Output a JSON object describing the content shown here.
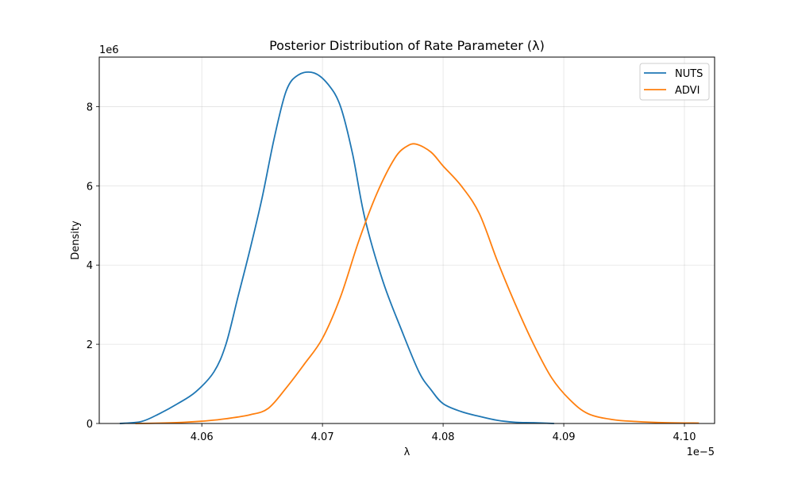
{
  "chart_data": {
    "type": "line",
    "title": "Posterior Distribution of Rate Parameter (λ)",
    "xlabel": "λ",
    "ylabel": "Density",
    "x_offset_label": "1e−5",
    "y_offset_label": "1e6",
    "x_ticks": [
      "4.06",
      "4.07",
      "4.08",
      "4.09",
      "4.10"
    ],
    "x_tick_values": [
      4.06,
      4.07,
      4.08,
      4.09,
      4.1
    ],
    "y_ticks": [
      "0",
      "2",
      "4",
      "6",
      "8"
    ],
    "y_tick_values": [
      0,
      2,
      4,
      6,
      8
    ],
    "xlim": [
      4.0515,
      4.1025
    ],
    "ylim": [
      0,
      9.25
    ],
    "grid": true,
    "legend_position": "top-right",
    "series": [
      {
        "name": "NUTS",
        "color": "#1f77b4",
        "x": [
          4.0532,
          4.055,
          4.0565,
          4.058,
          4.0595,
          4.061,
          4.062,
          4.063,
          4.064,
          4.065,
          4.066,
          4.067,
          4.068,
          4.0693,
          4.0705,
          4.0715,
          4.0725,
          4.0735,
          4.075,
          4.0765,
          4.078,
          4.079,
          4.08,
          4.0815,
          4.083,
          4.0845,
          4.086,
          4.0875,
          4.0892
        ],
        "y": [
          0.0,
          0.05,
          0.25,
          0.5,
          0.8,
          1.3,
          2.0,
          3.2,
          4.4,
          5.7,
          7.2,
          8.4,
          8.8,
          8.85,
          8.55,
          8.0,
          6.8,
          5.2,
          3.6,
          2.4,
          1.3,
          0.85,
          0.5,
          0.3,
          0.18,
          0.08,
          0.03,
          0.02,
          0.0
        ]
      },
      {
        "name": "ADVI",
        "color": "#ff7f0e",
        "x": [
          4.0545,
          4.0565,
          4.0585,
          4.0605,
          4.062,
          4.064,
          4.0655,
          4.067,
          4.0685,
          4.07,
          4.0715,
          4.073,
          4.0745,
          4.076,
          4.077,
          4.0778,
          4.079,
          4.08,
          4.0815,
          4.083,
          4.0845,
          4.086,
          4.0875,
          4.089,
          4.0905,
          4.092,
          4.094,
          4.096,
          4.0985,
          4.1012
        ],
        "y": [
          0.0,
          0.01,
          0.03,
          0.07,
          0.12,
          0.22,
          0.38,
          0.9,
          1.5,
          2.15,
          3.2,
          4.6,
          5.8,
          6.7,
          7.0,
          7.05,
          6.85,
          6.5,
          6.0,
          5.3,
          4.1,
          3.0,
          2.0,
          1.15,
          0.6,
          0.25,
          0.1,
          0.05,
          0.02,
          0.01
        ]
      }
    ]
  }
}
